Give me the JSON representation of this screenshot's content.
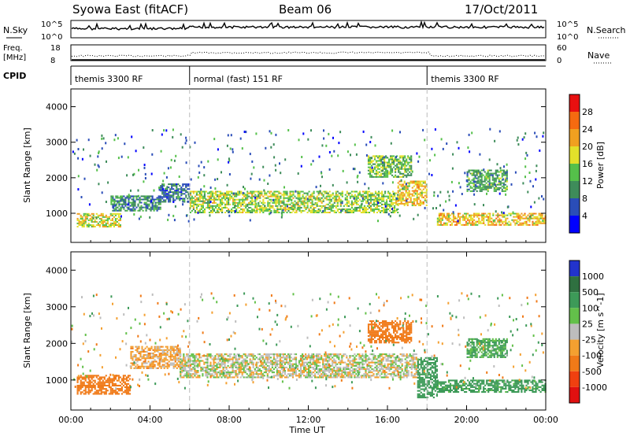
{
  "header": {
    "title": "Syowa East (fitACF)",
    "beam": "Beam 06",
    "date": "17/Oct/2011"
  },
  "strip_nsky": {
    "label": "N.Sky",
    "tick_top": "10^5",
    "tick_bottom": "10^0",
    "right_tick_top": "10^5",
    "right_tick_bottom": "10^0",
    "right_label": "N.Search"
  },
  "strip_freq": {
    "label_line1": "Freq.",
    "label_line2": "[MHz]",
    "tick_top": "18",
    "tick_bottom": "8",
    "right_tick_top": "60",
    "right_tick_bottom": "0",
    "right_label": "Nave"
  },
  "cpid": {
    "label": "CPID",
    "segments": [
      {
        "start": 0,
        "end": 6,
        "name": "themis 3300 RF"
      },
      {
        "start": 6,
        "end": 18,
        "name": "normal (fast) 151 RF"
      },
      {
        "start": 18,
        "end": 24,
        "name": "themis 3300 RF"
      }
    ]
  },
  "time_axis": {
    "label": "Time UT",
    "ticks": [
      "00:00",
      "04:00",
      "08:00",
      "12:00",
      "16:00",
      "20:00",
      "00:00"
    ]
  },
  "power_panel": {
    "ylabel": "Slant Range [km]",
    "yticks": [
      "1000",
      "2000",
      "3000",
      "4000"
    ],
    "colorbar_label": "Power [dB]",
    "colorbar_ticks": [
      "4",
      "8",
      "12",
      "16",
      "20",
      "24",
      "28"
    ],
    "colorbar_colors": [
      "#0000ff",
      "#2a4db8",
      "#3e8c5a",
      "#55c04a",
      "#e3e02a",
      "#f0a020",
      "#f56a10",
      "#e81010"
    ]
  },
  "velocity_panel": {
    "ylabel": "Slant Range [km]",
    "yticks": [
      "1000",
      "2000",
      "3000",
      "4000"
    ],
    "colorbar_label": "Velocity [m s^-1]",
    "colorbar_ticks": [
      "1000",
      "500",
      "100",
      "25",
      "-25",
      "-100",
      "-500",
      "-1000"
    ],
    "colorbar_colors": [
      "#2233cc",
      "#2f7040",
      "#3d9a58",
      "#63c04a",
      "#bdbdbd",
      "#f4a030",
      "#f07a18",
      "#f04010",
      "#e01010"
    ]
  },
  "chart_data": {
    "type": "heatmap",
    "x_range_hours": [
      0,
      24
    ],
    "y_range_km": [
      180,
      4500
    ],
    "panels": [
      {
        "name": "Power [dB]",
        "zlim": [
          0,
          30
        ],
        "bands": [
          {
            "t_start": 0.3,
            "t_end": 2.5,
            "r_low": 600,
            "r_high": 1000,
            "value": 18
          },
          {
            "t_start": 2.0,
            "t_end": 4.5,
            "r_low": 1050,
            "r_high": 1500,
            "value": 10
          },
          {
            "t_start": 4.5,
            "t_end": 6.0,
            "r_low": 1300,
            "r_high": 1800,
            "value": 8
          },
          {
            "t_start": 6.0,
            "t_end": 16.5,
            "r_low": 1000,
            "r_high": 1600,
            "value": 16
          },
          {
            "t_start": 16.5,
            "t_end": 18.0,
            "r_low": 1200,
            "r_high": 1900,
            "value": 20
          },
          {
            "t_start": 15.0,
            "t_end": 17.2,
            "r_low": 2000,
            "r_high": 2600,
            "value": 14
          },
          {
            "t_start": 18.5,
            "t_end": 24.0,
            "r_low": 650,
            "r_high": 1000,
            "value": 20
          },
          {
            "t_start": 20.0,
            "t_end": 22.0,
            "r_low": 1600,
            "r_high": 2200,
            "value": 12
          }
        ]
      },
      {
        "name": "Velocity [m s^-1]",
        "zlim": [
          -1000,
          1000
        ],
        "bands": [
          {
            "t_start": 0.3,
            "t_end": 3.0,
            "r_low": 600,
            "r_high": 1100,
            "value": -300
          },
          {
            "t_start": 3.0,
            "t_end": 5.5,
            "r_low": 1300,
            "r_high": 1900,
            "value": -60
          },
          {
            "t_start": 5.5,
            "t_end": 17.5,
            "r_low": 1050,
            "r_high": 1700,
            "value": 0
          },
          {
            "t_start": 15.0,
            "t_end": 17.2,
            "r_low": 2000,
            "r_high": 2600,
            "value": -200
          },
          {
            "t_start": 17.5,
            "t_end": 18.5,
            "r_low": 500,
            "r_high": 1600,
            "value": 200
          },
          {
            "t_start": 18.5,
            "t_end": 24.0,
            "r_low": 650,
            "r_high": 1000,
            "value": 150
          },
          {
            "t_start": 20.0,
            "t_end": 22.0,
            "r_low": 1600,
            "r_high": 2100,
            "value": 120
          }
        ]
      }
    ]
  }
}
